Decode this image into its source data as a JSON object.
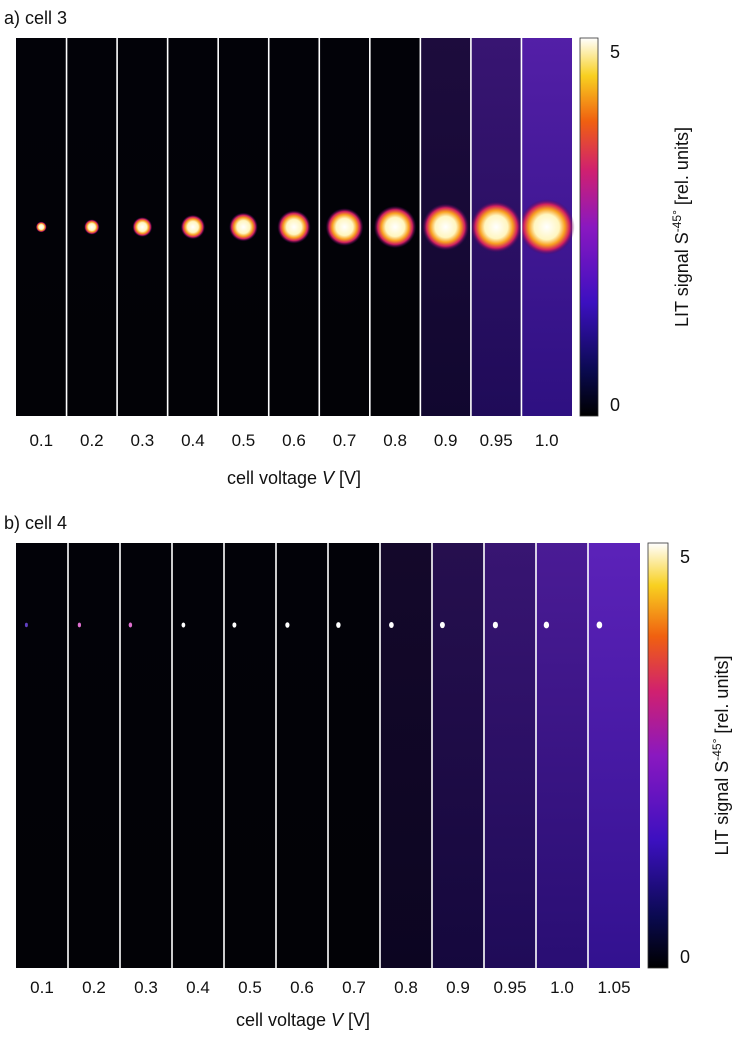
{
  "panels": [
    {
      "label": "a) cell 3",
      "voltages": [
        "0.1",
        "0.2",
        "0.3",
        "0.4",
        "0.5",
        "0.6",
        "0.7",
        "0.8",
        "0.9",
        "0.95",
        "1.0"
      ],
      "colorbar_max": "5",
      "colorbar_min": "0",
      "colorbar_label": {
        "main": "LIT signal S",
        "superscript": "-45°",
        "unit": " [rel. units]"
      },
      "x_label": {
        "text": "cell voltage ",
        "symbol": "V",
        "unit": " [V]"
      }
    },
    {
      "label": "b) cell 4",
      "voltages": [
        "0.1",
        "0.2",
        "0.3",
        "0.4",
        "0.5",
        "0.6",
        "0.7",
        "0.8",
        "0.9",
        "0.95",
        "1.0",
        "1.05"
      ],
      "colorbar_max": "5",
      "colorbar_min": "0",
      "colorbar_label": {
        "main": "LIT signal S",
        "superscript": "-45°",
        "unit": " [rel. units]"
      },
      "x_label": {
        "text": "cell voltage ",
        "symbol": "V",
        "unit": " [V]"
      }
    }
  ]
}
